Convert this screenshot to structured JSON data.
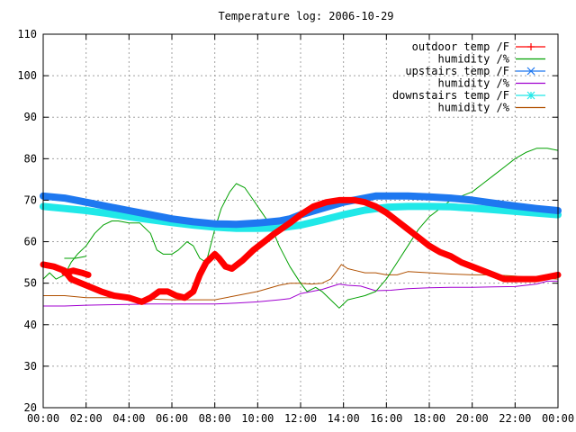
{
  "chart_data": {
    "type": "line",
    "title": "Temperature log: 2006-10-29",
    "xlabel": "",
    "ylabel": "",
    "x_ticks": [
      "00:00",
      "02:00",
      "04:00",
      "06:00",
      "08:00",
      "10:00",
      "12:00",
      "14:00",
      "16:00",
      "18:00",
      "20:00",
      "22:00",
      "00:00"
    ],
    "xlim": [
      0,
      24
    ],
    "ylim": [
      20,
      110
    ],
    "y_ticks": [
      20,
      30,
      40,
      50,
      60,
      70,
      80,
      90,
      100,
      110
    ],
    "grid": true,
    "legend_position": "top-right",
    "series": [
      {
        "name": "outdoor temp /F",
        "color": "#ff0000",
        "marker": "plus",
        "x": [
          0,
          0.5,
          1,
          1.3,
          2,
          2.7,
          3.3,
          4,
          4.6,
          5,
          5.4,
          5.8,
          6.2,
          6.6,
          7,
          7.3,
          7.6,
          8,
          8.2,
          8.5,
          8.8,
          9.3,
          9.8,
          10.3,
          10.8,
          11.5,
          12,
          12.6,
          13.2,
          13.8,
          14.5,
          15,
          15.5,
          16,
          16.5,
          17,
          17.5,
          18,
          18.5,
          19,
          19.5,
          20,
          20.5,
          21,
          21.5,
          22,
          22.5,
          23,
          23.5,
          24
        ],
        "y": [
          54.5,
          54,
          53,
          51,
          49.5,
          48,
          47,
          46.5,
          45.5,
          46.5,
          48,
          48,
          47,
          46.5,
          48,
          52,
          55,
          57,
          56,
          54,
          53.5,
          55.5,
          58,
          60,
          62,
          64.5,
          66.5,
          68.5,
          69.5,
          70,
          70,
          69.5,
          68.5,
          67,
          65,
          63,
          61,
          59,
          57.5,
          56.5,
          55,
          54,
          53,
          52,
          51,
          51,
          51,
          51,
          51.5,
          52
        ]
      },
      {
        "name": "outdoor temp /F",
        "color": "#ff0000",
        "marker": "plus",
        "x": [
          1,
          1.4,
          1.8,
          2.1
        ],
        "y": [
          52.5,
          53,
          52.5,
          52
        ]
      },
      {
        "name": "humidity /%",
        "color": "#00a000",
        "marker": "none",
        "x": [
          0,
          0.3,
          0.6,
          1,
          1.3,
          1.6,
          2,
          2.4,
          2.8,
          3.2,
          3.5,
          4,
          4.5,
          5,
          5.3,
          5.6,
          6,
          6.3,
          6.7,
          7,
          7.3,
          7.6,
          8,
          8.3,
          8.7,
          9,
          9.4,
          9.8,
          10.2,
          10.6,
          11,
          11.5,
          12,
          12.3,
          12.7,
          13,
          13.4,
          13.8,
          14.2,
          14.6,
          15,
          15.5,
          16,
          16.5,
          17,
          17.5,
          18,
          18.5,
          19,
          19.5,
          20,
          20.5,
          21,
          21.5,
          22,
          22.5,
          23,
          23.5,
          24
        ],
        "y": [
          51,
          52.5,
          51,
          52,
          55,
          57,
          59,
          62,
          64,
          65,
          65,
          64.5,
          64.5,
          62,
          58,
          57,
          57,
          58,
          60,
          59,
          56,
          55,
          63,
          68,
          72,
          74,
          73,
          70,
          67,
          64,
          59,
          54,
          50,
          48,
          49,
          48,
          46,
          44,
          46,
          46.5,
          47,
          48,
          51,
          55,
          59,
          63,
          66,
          68,
          70,
          71,
          72,
          74,
          76,
          78,
          80,
          81.5,
          82.5,
          82.5,
          82
        ]
      },
      {
        "name": "humidity /%",
        "color": "#00a000",
        "marker": "none",
        "x": [
          1,
          1.5,
          2
        ],
        "y": [
          56,
          56,
          56.5
        ]
      },
      {
        "name": "upstairs temp /F",
        "color": "#1e78f0",
        "marker": "cross",
        "x": [
          0,
          1,
          2,
          3,
          4,
          5,
          6,
          7,
          8,
          9,
          10,
          11,
          11.5,
          12,
          13,
          14,
          15,
          15.5,
          16,
          17,
          18,
          19,
          20,
          21,
          22,
          23,
          24
        ],
        "y": [
          71,
          70.5,
          69.5,
          68.5,
          67.5,
          66.5,
          65.5,
          64.8,
          64.3,
          64.2,
          64.5,
          65,
          65.5,
          66.5,
          68,
          69.5,
          70.5,
          71,
          71,
          71,
          70.8,
          70.5,
          70,
          69.3,
          68.6,
          68,
          67.5
        ]
      },
      {
        "name": "humidity /%",
        "color": "#a000d0",
        "marker": "none",
        "x": [
          0,
          1,
          2,
          3,
          4,
          5,
          6,
          7,
          8,
          9,
          10,
          11,
          11.5,
          12,
          13,
          13.8,
          14.2,
          14.8,
          15.5,
          16.2,
          17,
          18,
          19,
          20,
          21,
          22,
          23,
          23.5,
          24
        ],
        "y": [
          44.5,
          44.5,
          44.7,
          44.8,
          44.9,
          45,
          45,
          45,
          45,
          45.2,
          45.5,
          46,
          46.3,
          47.5,
          48.5,
          49.8,
          49.5,
          49.3,
          48.2,
          48.3,
          48.7,
          48.9,
          49,
          49,
          49.1,
          49.2,
          49.8,
          50.5,
          50.5
        ]
      },
      {
        "name": "downstairs temp /F",
        "color": "#20e8e8",
        "marker": "star",
        "x": [
          0,
          1,
          2,
          3,
          4,
          5,
          6,
          7,
          8,
          9,
          10,
          11,
          12,
          13,
          14,
          15,
          16,
          17,
          18,
          19,
          20,
          21,
          22,
          23,
          24
        ],
        "y": [
          68.5,
          68,
          67.5,
          66.8,
          66,
          65.3,
          64.6,
          64,
          63.5,
          63.2,
          63.2,
          63.3,
          64,
          65.2,
          66.5,
          67.6,
          68.3,
          68.5,
          68.5,
          68.4,
          68.1,
          67.7,
          67.3,
          66.9,
          66.5
        ]
      },
      {
        "name": "humidity /%",
        "color": "#b05000",
        "marker": "none",
        "x": [
          0,
          1,
          2,
          3,
          4,
          5,
          6,
          7,
          8,
          9,
          10,
          11,
          11.5,
          12,
          12.5,
          13,
          13.4,
          13.7,
          13.9,
          14.2,
          14.6,
          15,
          15.5,
          16,
          16.5,
          17,
          18,
          19,
          20,
          21,
          22,
          23,
          24
        ],
        "y": [
          47,
          47,
          46.5,
          46.5,
          46.3,
          46.2,
          46,
          46,
          46,
          47,
          48,
          49.5,
          50,
          50,
          49.8,
          50,
          51,
          53,
          54.5,
          53.5,
          53,
          52.5,
          52.5,
          52,
          52,
          52.8,
          52.5,
          52.2,
          52,
          52,
          51.7,
          51.3,
          51
        ]
      }
    ]
  },
  "colors": {
    "background": "#ffffff",
    "grid": "#a0a0a0",
    "frame": "#000000"
  }
}
